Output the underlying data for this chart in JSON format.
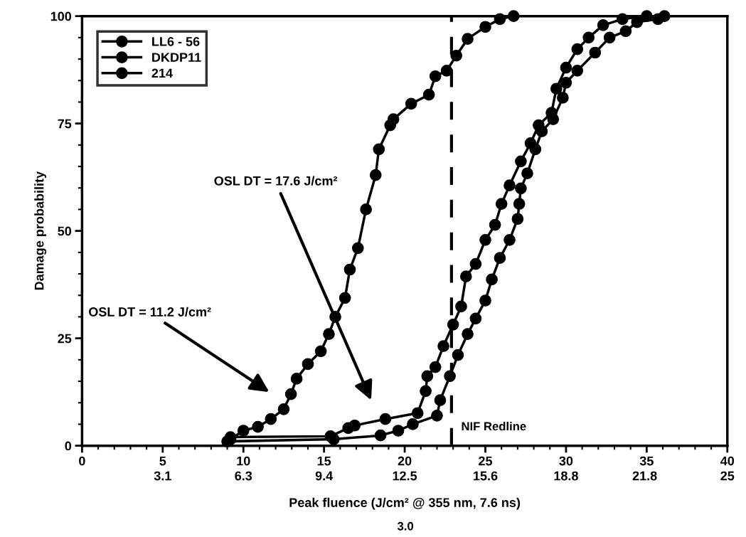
{
  "chart_data": {
    "type": "line",
    "xlabel": "Peak fluence (J/cm² @ 355 nm, 7.6 ns)",
    "ylabel": "Damage probability",
    "xlim": [
      0,
      40
    ],
    "ylim": [
      0,
      100
    ],
    "xticks": [
      0,
      5,
      10,
      15,
      20,
      25,
      30,
      35,
      40
    ],
    "x2lim": [
      0,
      25
    ],
    "x2ticks": [
      {
        "value": 3.125,
        "label": "3.1"
      },
      {
        "value": 6.25,
        "label": "6.3"
      },
      {
        "value": 9.375,
        "label": "9.4"
      },
      12.5,
      {
        "value": 15.625,
        "label": "15.6"
      },
      {
        "value": 18.75,
        "label": "18.8"
      },
      21.8,
      25
    ],
    "yticks": [
      0,
      25,
      50,
      75,
      100
    ],
    "grid": false,
    "legend": "top left",
    "marker": "circle",
    "line_style": "solid",
    "series": [
      {
        "name": "LL6 - 56",
        "color": "#000000",
        "x": [
          9.2,
          10.0,
          10.9,
          11.7,
          12.5,
          12.95,
          13.3,
          14.0,
          14.8,
          15.3,
          15.7,
          16.3,
          16.6,
          17.1,
          17.6,
          18.2,
          18.4,
          19.1,
          19.3,
          20.4,
          21.5,
          21.9,
          22.6,
          23.2,
          23.9,
          25.0,
          25.9,
          26.75
        ],
        "values": [
          1.5,
          3.5,
          4.4,
          6.2,
          8.5,
          12,
          15.6,
          19,
          22,
          26,
          30,
          34.4,
          41,
          46,
          55,
          63,
          69,
          74.6,
          76,
          79.6,
          81.7,
          86,
          87.3,
          90.8,
          94.7,
          97.5,
          99.3,
          100
        ]
      },
      {
        "name": "DKDP11",
        "color": "#000000",
        "x": [
          9.2,
          15.4,
          16.5,
          16.9,
          18.8,
          20.8,
          21.3,
          21.4,
          21.9,
          22.4,
          23.0,
          23.5,
          23.8,
          24.4,
          25.0,
          25.6,
          26.0,
          26.5,
          27.2,
          27.8,
          28.3,
          29.1,
          29.4,
          30.0,
          30.7,
          31.4,
          32.3,
          33.5,
          35.0
        ],
        "values": [
          2,
          2.2,
          4.1,
          4.7,
          6.2,
          7.6,
          12.7,
          16.2,
          18.3,
          23.2,
          28.2,
          32.4,
          39.4,
          42.3,
          47.9,
          51.4,
          56.3,
          60.6,
          66.2,
          70.4,
          74.6,
          77.5,
          83.1,
          88,
          92.3,
          95,
          97.9,
          99.3,
          100
        ]
      },
      {
        "name": "214",
        "color": "#000000",
        "x": [
          9.0,
          15.6,
          18.5,
          19.6,
          20.5,
          22.0,
          22.2,
          22.8,
          23.3,
          23.9,
          24.4,
          25.0,
          25.4,
          25.9,
          26.5,
          27.0,
          27.1,
          27.2,
          27.6,
          28.1,
          28.5,
          29.2,
          29.8,
          30.0,
          30.7,
          31.8,
          32.7,
          33.7,
          34.4,
          35.7,
          36.1
        ],
        "values": [
          1,
          1.5,
          2.4,
          3.5,
          5,
          7,
          10.6,
          16.2,
          21.1,
          26,
          29.6,
          33.8,
          38.7,
          43.7,
          47.9,
          52.8,
          56.3,
          59.9,
          63.4,
          69,
          73.2,
          76,
          81,
          84.5,
          87.3,
          91.5,
          95,
          96.5,
          98.6,
          99.3,
          100
        ]
      }
    ],
    "ref_lines": [
      {
        "axis": "x",
        "value": 22.9,
        "label": "NIF Redline",
        "color": "#000000",
        "line_style": "dashed"
      }
    ],
    "annotations": [
      "OSL DT = 11.2 J/cm²",
      "OSL DT = 17.6 J/cm²",
      "3.0"
    ]
  }
}
